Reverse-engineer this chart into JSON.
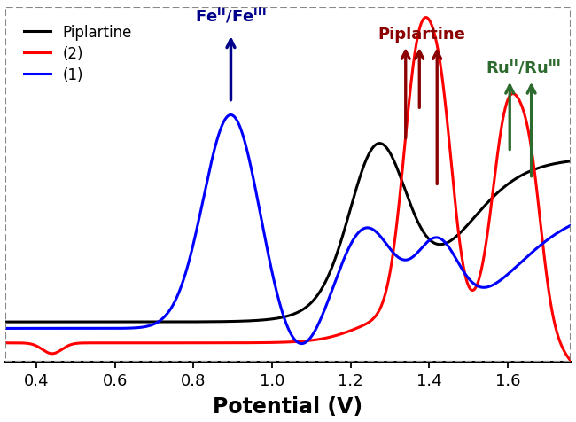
{
  "xlabel": "Potential (V)",
  "xlim": [
    0.32,
    1.76
  ],
  "ylim": [
    -0.08,
    0.85
  ],
  "xticks": [
    0.4,
    0.6,
    0.8,
    1.0,
    1.2,
    1.4,
    1.6
  ],
  "background_color": "#ffffff",
  "legend_entries": [
    "Piplartine",
    "(2)",
    "(1)"
  ],
  "legend_colors": [
    "black",
    "red",
    "blue"
  ]
}
